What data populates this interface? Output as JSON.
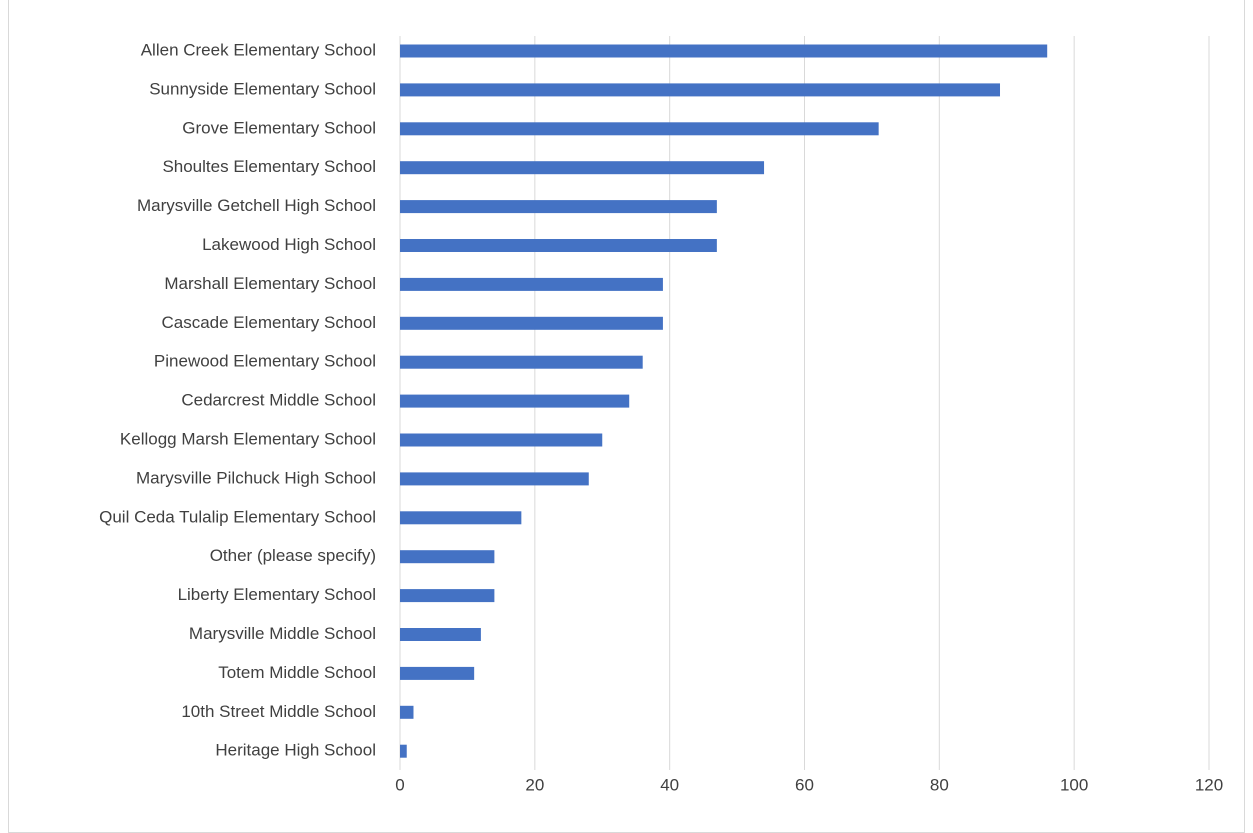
{
  "chart_data": {
    "type": "bar",
    "orientation": "horizontal",
    "title": "",
    "categories": [
      "Allen Creek Elementary School",
      "Sunnyside Elementary School",
      "Grove Elementary School",
      "Shoultes Elementary School",
      "Marysville Getchell High School",
      "Lakewood High School",
      "Marshall Elementary School",
      "Cascade Elementary School",
      "Pinewood Elementary School",
      "Cedarcrest Middle School",
      "Kellogg Marsh Elementary School",
      "Marysville Pilchuck High School",
      "Quil Ceda Tulalip Elementary School",
      "Other (please specify)",
      "Liberty Elementary School",
      "Marysville Middle School",
      "Totem Middle School",
      "10th Street Middle School",
      "Heritage High School"
    ],
    "values": [
      96,
      89,
      71,
      54,
      47,
      47,
      39,
      39,
      36,
      34,
      30,
      28,
      18,
      14,
      14,
      12,
      11,
      2,
      1
    ],
    "xlim": [
      0,
      120
    ],
    "xticks": [
      "0",
      "20",
      "40",
      "60",
      "80",
      "100",
      "120"
    ],
    "grid": true,
    "colors": {
      "bar": "#4472c4",
      "grid": "#d9d9d9",
      "label": "#404040",
      "title": "#1f6b5b"
    }
  }
}
